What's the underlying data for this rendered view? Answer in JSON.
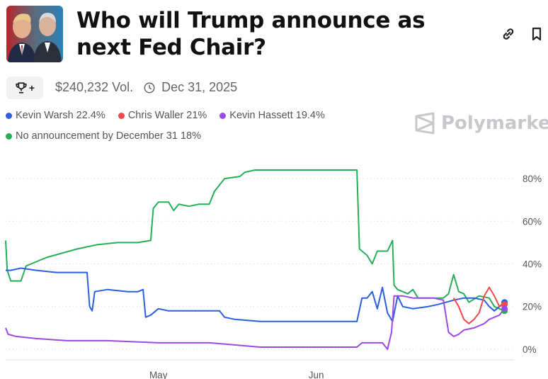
{
  "header": {
    "title": "Who will Trump announce as next Fed Chair?",
    "volume": "$240,232 Vol.",
    "end_date": "Dec 31, 2025",
    "brand": "Polymarket",
    "trophy_plus": "+"
  },
  "icons": [
    "link-icon",
    "bookmark-icon",
    "trophy-icon",
    "clock-icon",
    "polymarket-logo-icon"
  ],
  "legend": [
    {
      "label": "Kevin Warsh 22.4%",
      "color": "#2b5fe0"
    },
    {
      "label": "Chris Waller 21%",
      "color": "#f04a4a"
    },
    {
      "label": "Kevin Hassett 19.4%",
      "color": "#9b4ae6"
    },
    {
      "label": "No announcement by December 31 18%",
      "color": "#27ae5a"
    }
  ],
  "chart_data": {
    "type": "line",
    "x_ticks": [
      {
        "label": "May",
        "x": 30
      },
      {
        "label": "Jun",
        "x": 61
      }
    ],
    "xlim": [
      0,
      100
    ],
    "ylim": [
      -3,
      88
    ],
    "y_ticks": [
      0,
      20,
      40,
      60,
      80
    ],
    "y_tick_labels": [
      "0%",
      "20%",
      "40%",
      "60%",
      "80%"
    ],
    "grid": "horizontal-dotted",
    "series": [
      {
        "name": "No announcement by December 31",
        "color": "#27ae5a",
        "points": [
          [
            0,
            51
          ],
          [
            0.3,
            37
          ],
          [
            1,
            32
          ],
          [
            3,
            32
          ],
          [
            4,
            39
          ],
          [
            6,
            41
          ],
          [
            8,
            43
          ],
          [
            11,
            45
          ],
          [
            14,
            47
          ],
          [
            18,
            49
          ],
          [
            22,
            50
          ],
          [
            26,
            50
          ],
          [
            28.5,
            51
          ],
          [
            29,
            66
          ],
          [
            30,
            69
          ],
          [
            32,
            69
          ],
          [
            33,
            65
          ],
          [
            34,
            68
          ],
          [
            36,
            67
          ],
          [
            38,
            68
          ],
          [
            40,
            68
          ],
          [
            41,
            74
          ],
          [
            43,
            80
          ],
          [
            46,
            81
          ],
          [
            47,
            83
          ],
          [
            49,
            84
          ],
          [
            60,
            84
          ],
          [
            69,
            84
          ],
          [
            69.5,
            47
          ],
          [
            71,
            44
          ],
          [
            72,
            40
          ],
          [
            73,
            46
          ],
          [
            75,
            46
          ],
          [
            76,
            51
          ],
          [
            76.3,
            30
          ],
          [
            77,
            28
          ],
          [
            79,
            26
          ],
          [
            80,
            28
          ],
          [
            81,
            24
          ],
          [
            84,
            24
          ],
          [
            86,
            24
          ],
          [
            87,
            26
          ],
          [
            88,
            35
          ],
          [
            89,
            27
          ],
          [
            90,
            26
          ],
          [
            91,
            22
          ],
          [
            93,
            25
          ],
          [
            95,
            24
          ],
          [
            96,
            20
          ],
          [
            97,
            19
          ],
          [
            98,
            18
          ]
        ]
      },
      {
        "name": "Kevin Warsh",
        "color": "#2b5fe0",
        "points": [
          [
            0,
            37
          ],
          [
            1,
            37
          ],
          [
            3,
            38
          ],
          [
            6,
            37
          ],
          [
            10,
            36
          ],
          [
            16,
            36
          ],
          [
            16.5,
            20
          ],
          [
            17,
            18
          ],
          [
            17.5,
            27
          ],
          [
            20,
            28
          ],
          [
            24,
            27
          ],
          [
            26,
            27
          ],
          [
            27,
            28
          ],
          [
            27.5,
            15
          ],
          [
            28.5,
            16
          ],
          [
            30,
            19
          ],
          [
            32,
            18
          ],
          [
            36,
            18
          ],
          [
            41,
            18
          ],
          [
            42,
            18
          ],
          [
            43,
            15
          ],
          [
            45,
            14
          ],
          [
            50,
            13
          ],
          [
            60,
            13
          ],
          [
            69,
            13
          ],
          [
            70,
            24
          ],
          [
            71,
            24
          ],
          [
            72,
            27
          ],
          [
            73,
            19
          ],
          [
            74,
            29
          ],
          [
            75,
            17
          ],
          [
            76,
            13
          ],
          [
            77,
            25
          ],
          [
            78,
            20
          ],
          [
            80,
            19
          ],
          [
            83,
            20
          ],
          [
            85,
            21
          ],
          [
            88,
            23
          ],
          [
            90,
            24
          ],
          [
            92,
            24
          ],
          [
            94,
            23
          ],
          [
            95,
            20
          ],
          [
            96,
            18
          ],
          [
            98,
            22
          ]
        ]
      },
      {
        "name": "Chris Waller",
        "color": "#f04a4a",
        "points": [
          [
            88,
            24
          ],
          [
            89,
            20
          ],
          [
            90,
            14
          ],
          [
            91,
            12
          ],
          [
            92,
            14
          ],
          [
            93,
            17
          ],
          [
            94,
            25
          ],
          [
            95,
            29
          ],
          [
            96,
            25
          ],
          [
            97,
            20
          ],
          [
            98,
            21
          ]
        ]
      },
      {
        "name": "Kevin Hassett",
        "color": "#9b4ae6",
        "points": [
          [
            0,
            10
          ],
          [
            0.5,
            7
          ],
          [
            2,
            6
          ],
          [
            6,
            5
          ],
          [
            12,
            4
          ],
          [
            20,
            4
          ],
          [
            30,
            3
          ],
          [
            40,
            3
          ],
          [
            45,
            2
          ],
          [
            50,
            1
          ],
          [
            60,
            1
          ],
          [
            69,
            1
          ],
          [
            70,
            3
          ],
          [
            73,
            3
          ],
          [
            74,
            3
          ],
          [
            75,
            0
          ],
          [
            75.8,
            8
          ],
          [
            76.3,
            25
          ],
          [
            78,
            25
          ],
          [
            80,
            24
          ],
          [
            83,
            24
          ],
          [
            84,
            24
          ],
          [
            86,
            23
          ],
          [
            87,
            8
          ],
          [
            88,
            6
          ],
          [
            89,
            7
          ],
          [
            90,
            9
          ],
          [
            92,
            10
          ],
          [
            94,
            12
          ],
          [
            95,
            14
          ],
          [
            96,
            15
          ],
          [
            97,
            16
          ],
          [
            98,
            19
          ]
        ]
      }
    ]
  }
}
